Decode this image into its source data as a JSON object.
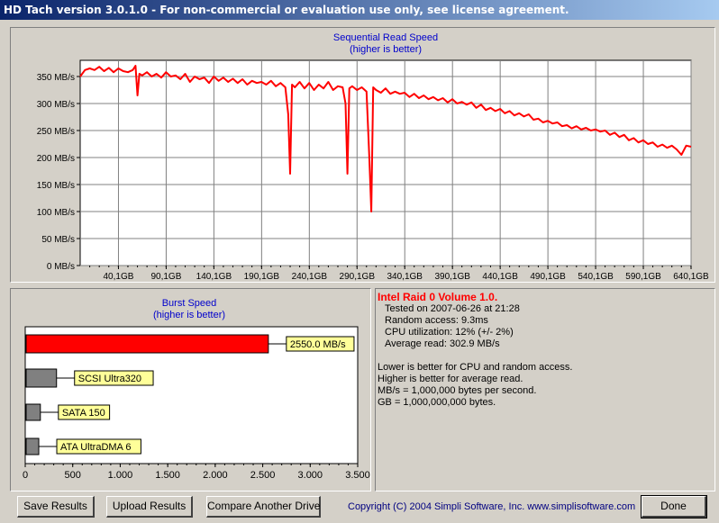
{
  "window": {
    "title": "HD Tach version 3.0.1.0  - For non-commercial or evaluation use only, see license agreement."
  },
  "colors": {
    "accent": "#ff0000",
    "title_blue": "#0000cc",
    "label_yellow": "#ffff99",
    "bar_gray": "#808080"
  },
  "chart_data": [
    {
      "type": "line",
      "title": "Sequential Read Speed",
      "subtitle": "(higher is better)",
      "yunit": "MB/s",
      "y_ticks": [
        0,
        50,
        100,
        150,
        200,
        250,
        300,
        350
      ],
      "y_tick_labels": [
        "0 MB/s",
        "50 MB/s",
        "100 MB/s",
        "150 MB/s",
        "200 MB/s",
        "250 MB/s",
        "300 MB/s",
        "350 MB/s"
      ],
      "x_tick_labels": [
        "40,1GB",
        "90,1GB",
        "140,1GB",
        "190,1GB",
        "240,1GB",
        "290,1GB",
        "340,1GB",
        "390,1GB",
        "440,1GB",
        "490,1GB",
        "540,1GB",
        "590,1GB",
        "640,1GB"
      ],
      "x_ticks": [
        40.1,
        90.1,
        140.1,
        190.1,
        240.1,
        290.1,
        340.1,
        390.1,
        440.1,
        490.1,
        540.1,
        590.1,
        640.1
      ],
      "xlim": [
        0,
        640.1
      ],
      "ylim": [
        0,
        380
      ],
      "grid": true,
      "series": [
        {
          "color": "#ff0000",
          "x": [
            0,
            5,
            10,
            15,
            20,
            25,
            30,
            35,
            40,
            45,
            50,
            55,
            58,
            60,
            62,
            65,
            70,
            75,
            80,
            85,
            90,
            95,
            100,
            105,
            110,
            115,
            120,
            125,
            130,
            135,
            140,
            145,
            150,
            155,
            160,
            165,
            170,
            175,
            180,
            185,
            190,
            195,
            200,
            205,
            210,
            215,
            218,
            220,
            222,
            225,
            230,
            235,
            240,
            245,
            250,
            255,
            260,
            265,
            270,
            275,
            278,
            280,
            282,
            285,
            290,
            295,
            300,
            303,
            305,
            307,
            310,
            315,
            320,
            325,
            330,
            335,
            340,
            345,
            350,
            355,
            360,
            365,
            370,
            375,
            380,
            385,
            390,
            395,
            400,
            405,
            410,
            415,
            420,
            425,
            430,
            435,
            440,
            445,
            450,
            455,
            460,
            465,
            470,
            475,
            480,
            485,
            490,
            495,
            500,
            505,
            510,
            515,
            520,
            525,
            530,
            535,
            540,
            545,
            550,
            555,
            560,
            565,
            570,
            575,
            580,
            585,
            590,
            595,
            600,
            605,
            610,
            615,
            620,
            625,
            630,
            635,
            640.1
          ],
          "y": [
            350,
            362,
            365,
            362,
            368,
            360,
            366,
            358,
            365,
            360,
            358,
            362,
            370,
            315,
            355,
            352,
            358,
            350,
            355,
            348,
            358,
            350,
            352,
            345,
            355,
            340,
            350,
            345,
            348,
            338,
            350,
            342,
            348,
            340,
            346,
            338,
            345,
            335,
            342,
            338,
            340,
            335,
            342,
            332,
            338,
            330,
            280,
            170,
            335,
            330,
            340,
            328,
            338,
            325,
            335,
            328,
            340,
            325,
            332,
            330,
            300,
            170,
            328,
            332,
            325,
            330,
            322,
            200,
            100,
            330,
            325,
            320,
            328,
            318,
            322,
            318,
            320,
            312,
            318,
            310,
            315,
            308,
            312,
            306,
            310,
            302,
            308,
            300,
            303,
            298,
            302,
            292,
            298,
            288,
            292,
            286,
            290,
            282,
            286,
            278,
            282,
            276,
            280,
            270,
            272,
            265,
            268,
            263,
            265,
            258,
            260,
            254,
            258,
            252,
            255,
            250,
            252,
            248,
            250,
            242,
            246,
            238,
            242,
            232,
            236,
            228,
            232,
            225,
            228,
            220,
            224,
            218,
            222,
            215,
            205,
            222,
            220
          ]
        }
      ]
    },
    {
      "type": "bar",
      "orientation": "horizontal",
      "title": "Burst Speed",
      "subtitle": "(higher is better)",
      "xlim": [
        0,
        3500
      ],
      "x_ticks": [
        0,
        500,
        1000,
        1500,
        2000,
        2500,
        3000,
        3500
      ],
      "x_tick_labels": [
        "0",
        "500",
        "1.000",
        "1.500",
        "2.000",
        "2.500",
        "3.000",
        "3.500"
      ],
      "bars": [
        {
          "label": "2550.0 MB/s",
          "value": 2550,
          "color": "#ff0000"
        },
        {
          "label": "SCSI Ultra320",
          "value": 320,
          "color": "#808080"
        },
        {
          "label": "SATA 150",
          "value": 150,
          "color": "#808080"
        },
        {
          "label": "ATA UltraDMA 6",
          "value": 133,
          "color": "#808080"
        }
      ]
    }
  ],
  "info": {
    "drive_name": "Intel Raid 0 Volume 1.0.",
    "tested_on": "Tested on 2007-06-26 at 21:28",
    "random_access": "Random access: 9.3ms",
    "cpu_utilization": "CPU utilization: 12% (+/- 2%)",
    "average_read": "Average read: 302.9 MB/s",
    "notes": [
      "Lower is better for CPU and random access.",
      "Higher is better for average read.",
      "MB/s = 1,000,000 bytes per second.",
      "GB = 1,000,000,000 bytes."
    ]
  },
  "buttons": {
    "save": "Save Results",
    "upload": "Upload Results",
    "compare": "Compare Another Drive",
    "done": "Done"
  },
  "footer": {
    "copyright": "Copyright (C) 2004 Simpli Software, Inc. www.simplisoftware.com"
  }
}
